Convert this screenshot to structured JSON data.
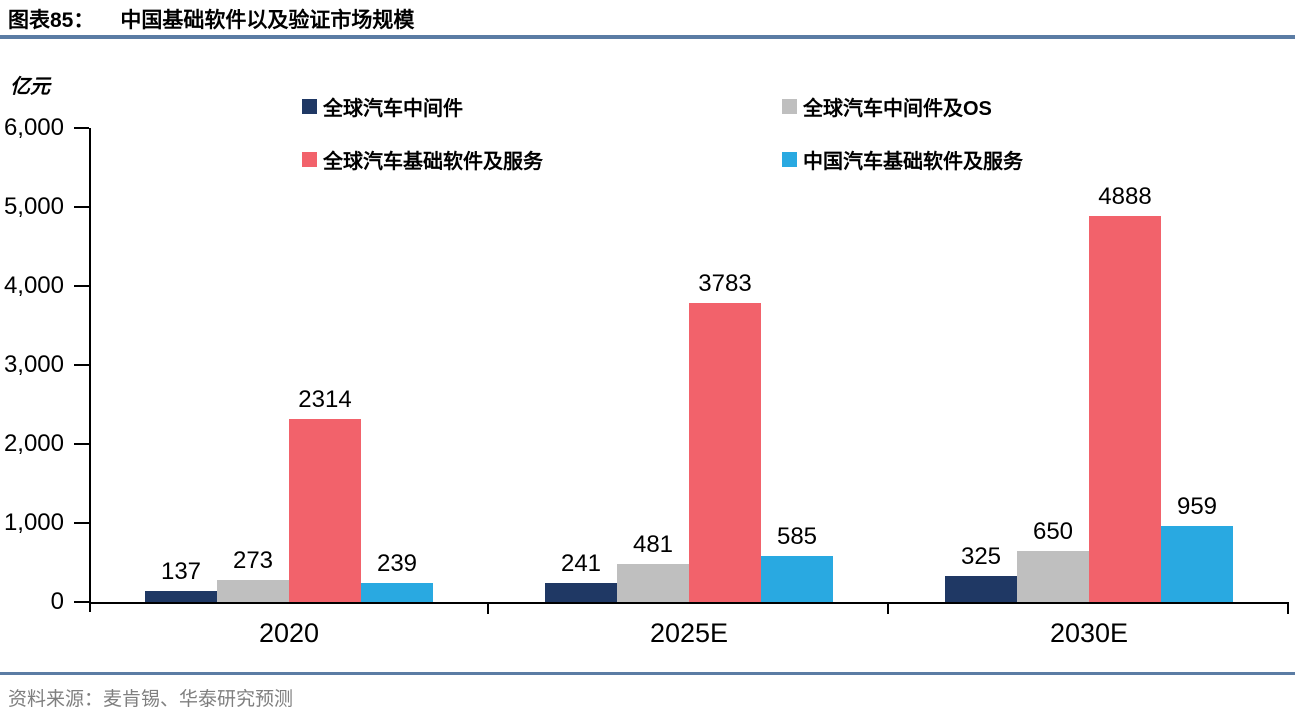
{
  "chart_data": {
    "type": "bar",
    "figure_label": "图表85：",
    "title": "中国基础软件以及验证市场规模",
    "unit_label": "亿元",
    "categories": [
      "2020",
      "2025E",
      "2030E"
    ],
    "series": [
      {
        "name": "全球汽车中间件",
        "color": "#1F3864",
        "values": [
          137,
          241,
          325
        ]
      },
      {
        "name": "全球汽车中间件及OS",
        "color": "#BFBFBF",
        "values": [
          273,
          481,
          650
        ]
      },
      {
        "name": "全球汽车基础软件及服务",
        "color": "#F2626B",
        "values": [
          2314,
          3783,
          4888
        ]
      },
      {
        "name": "中国汽车基础软件及服务",
        "color": "#29A9E1",
        "values": [
          239,
          585,
          959
        ]
      }
    ],
    "ylim": [
      0,
      6000
    ],
    "ytick_step": 1000,
    "ytick_labels": [
      "0",
      "1,000",
      "2,000",
      "3,000",
      "4,000",
      "5,000",
      "6,000"
    ],
    "grid": false,
    "legend_position": "top",
    "value_labels": true
  },
  "colors": {
    "divider": "#5B7CA4",
    "axis": "#000000",
    "source_text": "#7F7F7F"
  },
  "footer": {
    "source_text": "资料来源：麦肯锡、华泰研究预测"
  }
}
